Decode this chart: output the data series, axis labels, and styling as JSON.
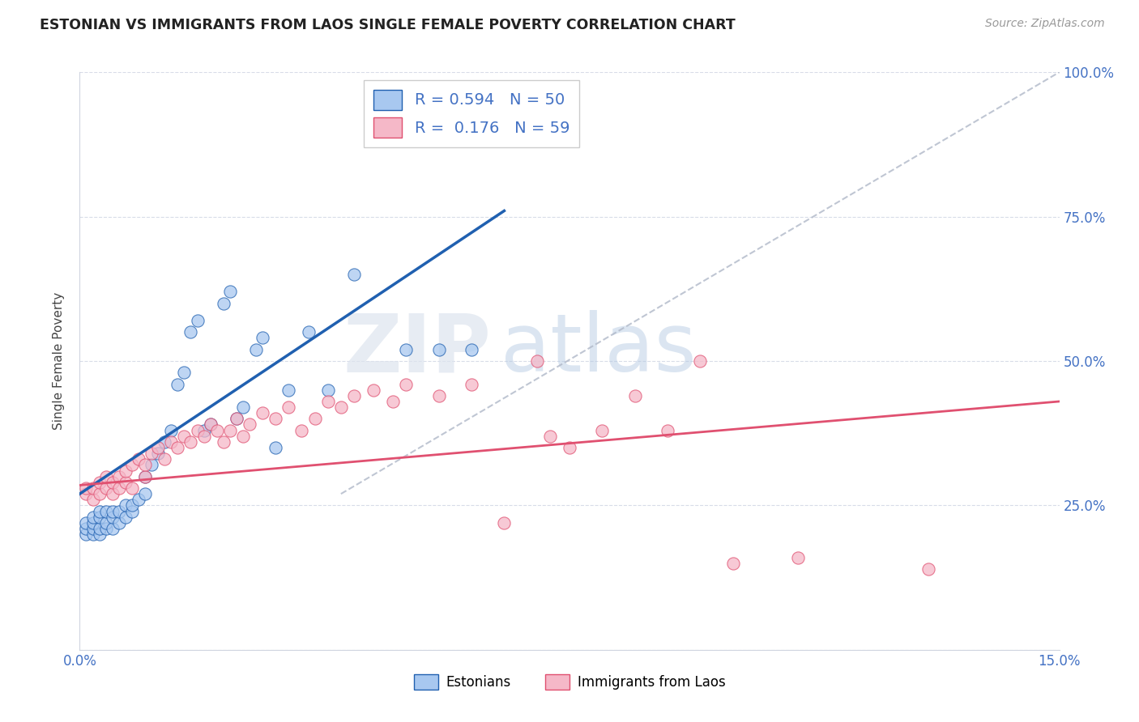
{
  "title": "ESTONIAN VS IMMIGRANTS FROM LAOS SINGLE FEMALE POVERTY CORRELATION CHART",
  "source": "Source: ZipAtlas.com",
  "ylabel": "Single Female Poverty",
  "xlim": [
    0.0,
    0.15
  ],
  "ylim": [
    0.0,
    1.0
  ],
  "xtick_positions": [
    0.0,
    0.03,
    0.06,
    0.09,
    0.12,
    0.15
  ],
  "xtick_labels": [
    "0.0%",
    "",
    "",
    "",
    "",
    "15.0%"
  ],
  "ytick_positions": [
    0.0,
    0.25,
    0.5,
    0.75,
    1.0
  ],
  "ytick_labels_right": [
    "",
    "25.0%",
    "50.0%",
    "75.0%",
    "100.0%"
  ],
  "legend_labels": [
    "Estonians",
    "Immigrants from Laos"
  ],
  "R_estonian": 0.594,
  "N_estonian": 50,
  "R_laos": 0.176,
  "N_laos": 59,
  "color_estonian": "#a8c8f0",
  "color_laos": "#f5b8c8",
  "line_color_estonian": "#2060b0",
  "line_color_laos": "#e05070",
  "watermark_zip": "ZIP",
  "watermark_atlas": "atlas",
  "est_trend_x": [
    0.0,
    0.065
  ],
  "est_trend_y": [
    0.27,
    0.76
  ],
  "laos_trend_x": [
    0.0,
    0.15
  ],
  "laos_trend_y": [
    0.285,
    0.43
  ],
  "ref_line_x": [
    0.04,
    0.15
  ],
  "ref_line_y": [
    0.27,
    1.0
  ],
  "estonian_x": [
    0.001,
    0.001,
    0.001,
    0.002,
    0.002,
    0.002,
    0.002,
    0.003,
    0.003,
    0.003,
    0.003,
    0.004,
    0.004,
    0.004,
    0.005,
    0.005,
    0.005,
    0.006,
    0.006,
    0.007,
    0.007,
    0.008,
    0.008,
    0.009,
    0.01,
    0.01,
    0.011,
    0.012,
    0.013,
    0.014,
    0.015,
    0.016,
    0.017,
    0.018,
    0.019,
    0.02,
    0.022,
    0.023,
    0.024,
    0.025,
    0.027,
    0.028,
    0.03,
    0.032,
    0.035,
    0.038,
    0.042,
    0.05,
    0.055,
    0.06
  ],
  "estonian_y": [
    0.2,
    0.21,
    0.22,
    0.2,
    0.21,
    0.22,
    0.23,
    0.2,
    0.21,
    0.23,
    0.24,
    0.21,
    0.22,
    0.24,
    0.21,
    0.23,
    0.24,
    0.22,
    0.24,
    0.23,
    0.25,
    0.24,
    0.25,
    0.26,
    0.27,
    0.3,
    0.32,
    0.34,
    0.36,
    0.38,
    0.46,
    0.48,
    0.55,
    0.57,
    0.38,
    0.39,
    0.6,
    0.62,
    0.4,
    0.42,
    0.52,
    0.54,
    0.35,
    0.45,
    0.55,
    0.45,
    0.65,
    0.52,
    0.52,
    0.52
  ],
  "laos_x": [
    0.001,
    0.001,
    0.002,
    0.002,
    0.003,
    0.003,
    0.004,
    0.004,
    0.005,
    0.005,
    0.006,
    0.006,
    0.007,
    0.007,
    0.008,
    0.008,
    0.009,
    0.01,
    0.01,
    0.011,
    0.012,
    0.013,
    0.014,
    0.015,
    0.016,
    0.017,
    0.018,
    0.019,
    0.02,
    0.021,
    0.022,
    0.023,
    0.024,
    0.025,
    0.026,
    0.028,
    0.03,
    0.032,
    0.034,
    0.036,
    0.038,
    0.04,
    0.042,
    0.045,
    0.048,
    0.05,
    0.055,
    0.06,
    0.065,
    0.07,
    0.072,
    0.075,
    0.08,
    0.085,
    0.09,
    0.095,
    0.1,
    0.11,
    0.13
  ],
  "laos_y": [
    0.27,
    0.28,
    0.26,
    0.28,
    0.27,
    0.29,
    0.28,
    0.3,
    0.27,
    0.29,
    0.28,
    0.3,
    0.29,
    0.31,
    0.28,
    0.32,
    0.33,
    0.3,
    0.32,
    0.34,
    0.35,
    0.33,
    0.36,
    0.35,
    0.37,
    0.36,
    0.38,
    0.37,
    0.39,
    0.38,
    0.36,
    0.38,
    0.4,
    0.37,
    0.39,
    0.41,
    0.4,
    0.42,
    0.38,
    0.4,
    0.43,
    0.42,
    0.44,
    0.45,
    0.43,
    0.46,
    0.44,
    0.46,
    0.22,
    0.5,
    0.37,
    0.35,
    0.38,
    0.44,
    0.38,
    0.5,
    0.15,
    0.16,
    0.14
  ]
}
